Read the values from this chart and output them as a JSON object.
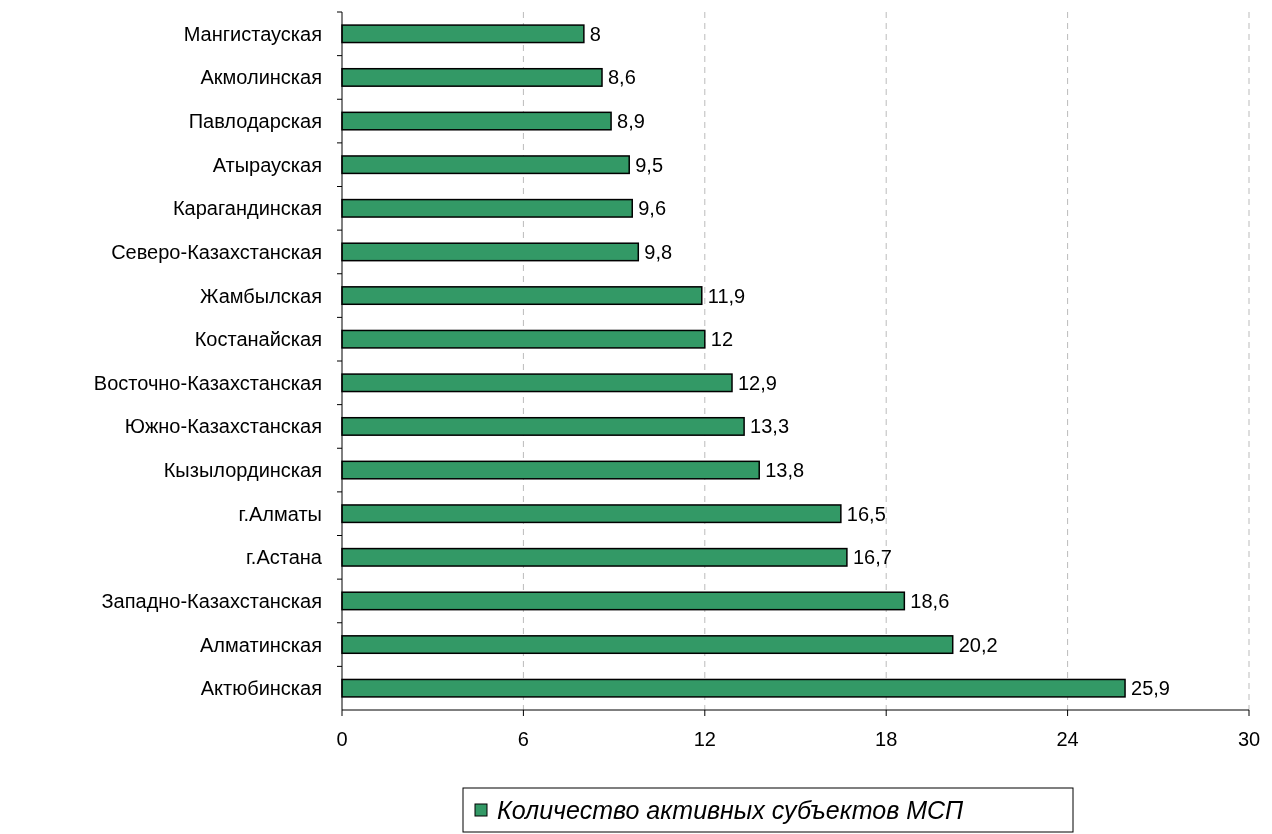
{
  "chart_data": {
    "type": "bar",
    "orientation": "horizontal",
    "categories": [
      "Мангистауская",
      "Акмолинская",
      "Павлодарская",
      "Атырауская",
      "Карагандинская",
      "Северо-Казахстанская",
      "Жамбылская",
      "Костанайская",
      "Восточно-Казахстанская",
      "Южно-Казахстанская",
      "Кызылординская",
      "г.Алматы",
      "г.Астана",
      "Западно-Казахстанская",
      "Алматинская",
      "Актюбинская"
    ],
    "series": [
      {
        "name": "Количество активных субъектов МСП",
        "color": "#339966",
        "values": [
          8,
          8.6,
          8.9,
          9.5,
          9.6,
          9.8,
          11.9,
          12,
          12.9,
          13.3,
          13.8,
          16.5,
          16.7,
          18.6,
          20.2,
          25.9
        ],
        "value_labels": [
          "8",
          "8,6",
          "8,9",
          "9,5",
          "9,6",
          "9,8",
          "11,9",
          "12",
          "12,9",
          "13,3",
          "13,8",
          "16,5",
          "16,7",
          "18,6",
          "20,2",
          "25,9"
        ]
      }
    ],
    "xlim": [
      0,
      30
    ],
    "xticks": [
      0,
      6,
      12,
      18,
      24,
      30
    ],
    "grid": "x",
    "legend": "bottom"
  }
}
